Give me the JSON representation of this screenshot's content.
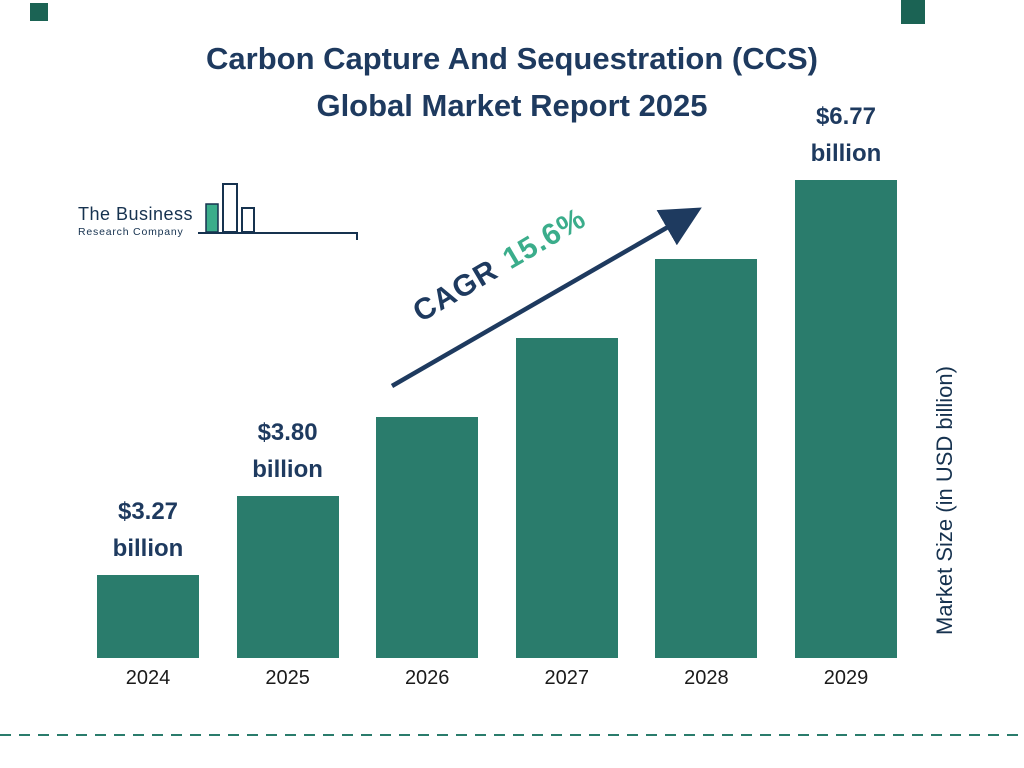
{
  "header": {
    "title_line1": "Carbon Capture And Sequestration (CCS)",
    "title_line2": "Global Market Report 2025"
  },
  "logo": {
    "name_line1": "The Business",
    "name_line2": "Research Company"
  },
  "annotation": {
    "cagr_label": "CAGR",
    "cagr_value": "15.6%"
  },
  "colors": {
    "bar": "#2A7C6C",
    "navy": "#1E3A5F",
    "green": "#3BAD8B",
    "dash": "#2A7C6C"
  },
  "chart_data": {
    "type": "bar",
    "title": "Carbon Capture And Sequestration (CCS) Global Market Report 2025",
    "categories": [
      "2024",
      "2025",
      "2026",
      "2027",
      "2028",
      "2029"
    ],
    "values": [
      3.27,
      3.8,
      4.39,
      5.07,
      5.86,
      6.77
    ],
    "value_labels": [
      {
        "amount": "$3.27",
        "unit": "billion"
      },
      {
        "amount": "$3.80",
        "unit": "billion"
      },
      null,
      null,
      null,
      {
        "amount": "$6.77",
        "unit": "billion"
      }
    ],
    "xlabel": "",
    "ylabel": "Market Size (in USD billion)",
    "annotation": "CAGR 15.6%",
    "legend": "none",
    "grid": "off",
    "bar_color": "#2A7C6C"
  }
}
